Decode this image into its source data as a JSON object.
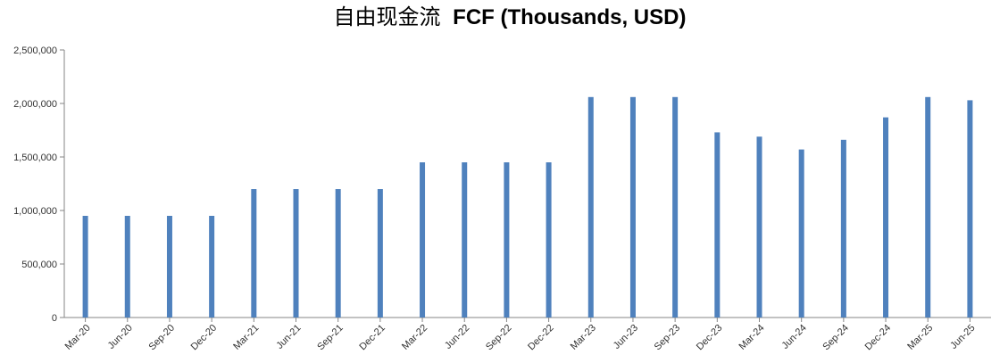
{
  "chart_data": {
    "type": "bar",
    "title_cn": "自由现金流",
    "title": "FCF (Thousands, USD)",
    "xlabel": "",
    "ylabel": "",
    "ylim": [
      0,
      2500000
    ],
    "yticks": [
      0,
      500000,
      1000000,
      1500000,
      2000000,
      2500000
    ],
    "ytick_labels": [
      "0",
      "500,000",
      "1,000,000",
      "1,500,000",
      "2,000,000",
      "2,500,000"
    ],
    "grid": false,
    "legend": "none",
    "categories": [
      "Mar-20",
      "Jun-20",
      "Sep-20",
      "Dec-20",
      "Mar-21",
      "Jun-21",
      "Sep-21",
      "Dec-21",
      "Mar-22",
      "Jun-22",
      "Sep-22",
      "Dec-22",
      "Mar-23",
      "Jun-23",
      "Sep-23",
      "Dec-23",
      "Mar-24",
      "Jun-24",
      "Sep-24",
      "Dec-24",
      "Mar-25",
      "Jun-25"
    ],
    "values": [
      950000,
      950000,
      950000,
      950000,
      1200000,
      1200000,
      1200000,
      1200000,
      1450000,
      1450000,
      1450000,
      1450000,
      2060000,
      2060000,
      2060000,
      1730000,
      1690000,
      1570000,
      1660000,
      1870000,
      2060000,
      2030000
    ],
    "bar_color": "#4f81bd",
    "axis_color": "#868686"
  }
}
